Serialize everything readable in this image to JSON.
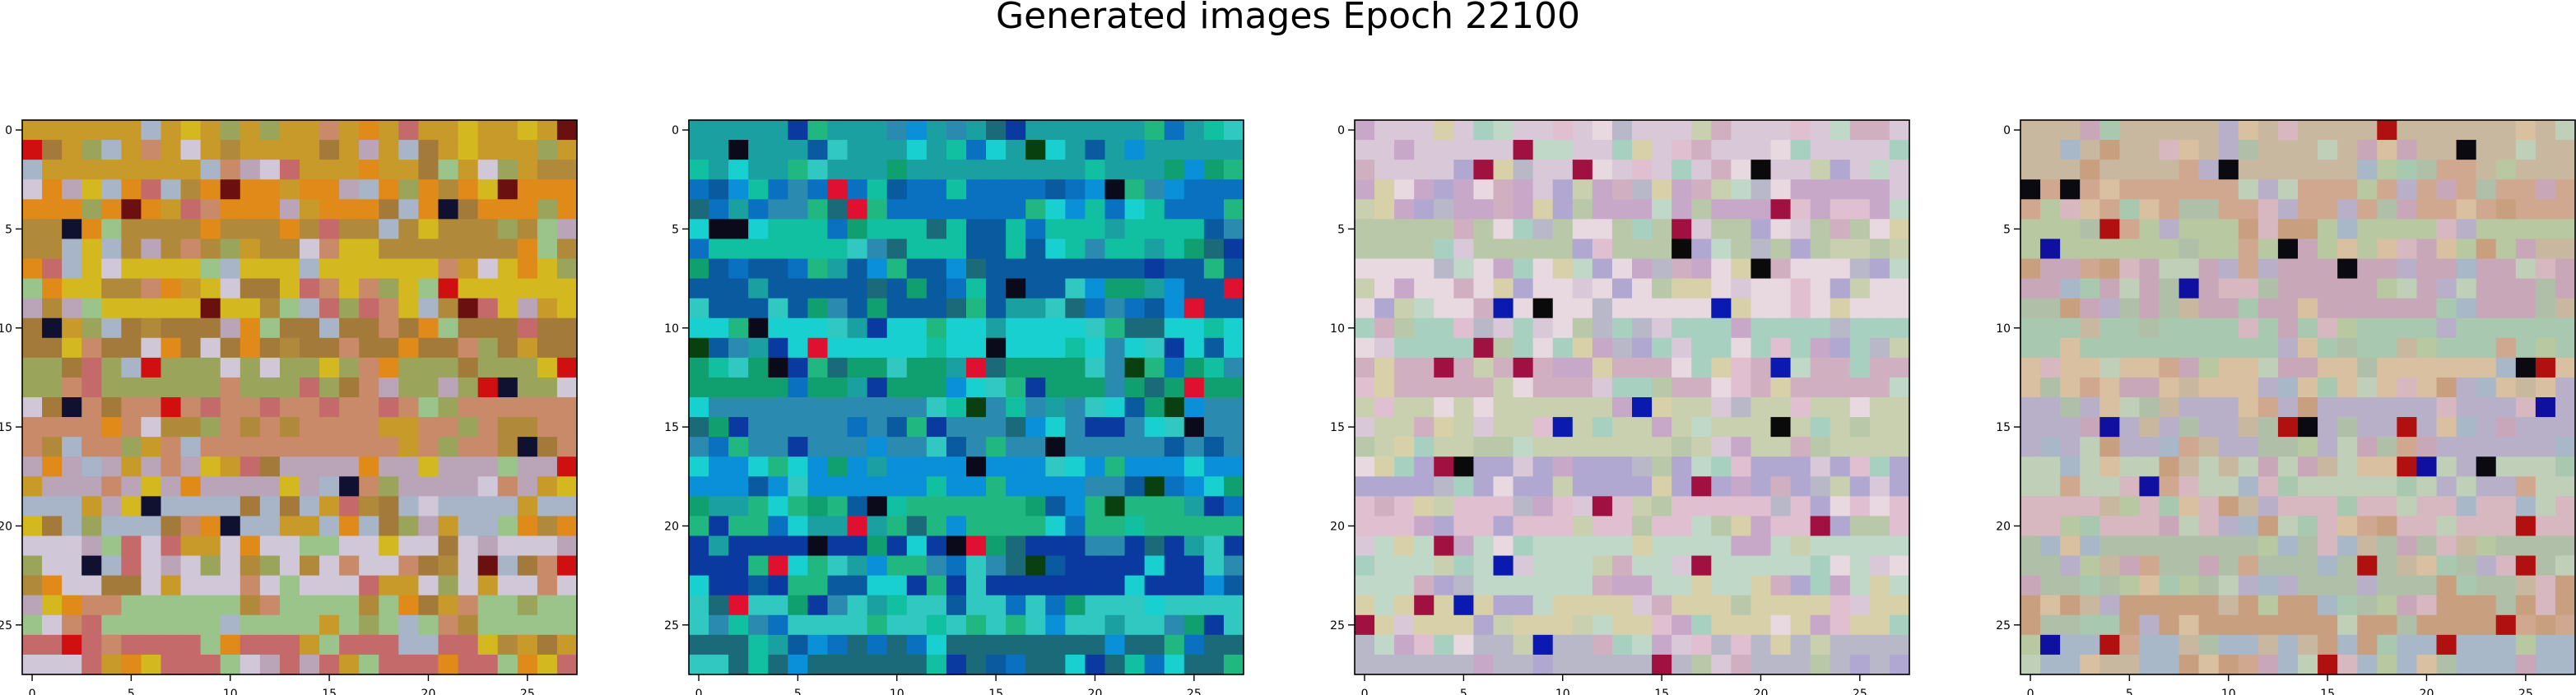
{
  "figure": {
    "title": "Generated images Epoch 22100"
  },
  "chart_data": [
    {
      "type": "heatmap",
      "title": "",
      "grid_size": [
        28,
        28
      ],
      "palette": [
        "#c79a2a",
        "#e08a1a",
        "#b08a3a",
        "#d4b820",
        "#a47a3a",
        "#9aa45a",
        "#c88a68",
        "#b9a4b8",
        "#a8b4c8",
        "#d0c8d8",
        "#9ac48a",
        "#c46a6a"
      ],
      "accent_colors": [
        "#101030",
        "#6a1010",
        "#d01010"
      ],
      "xticks": [
        0,
        5,
        10,
        15,
        20,
        25
      ],
      "yticks": [
        0,
        5,
        10,
        15,
        20,
        25
      ],
      "xlim": [
        -0.5,
        27.5
      ],
      "ylim": [
        27.5,
        -0.5
      ],
      "grid": false
    },
    {
      "type": "heatmap",
      "title": "",
      "grid_size": [
        28,
        28
      ],
      "palette": [
        "#1aa0a0",
        "#0a70c0",
        "#10c0a0",
        "#0a5aa0",
        "#18d0d0",
        "#10a070",
        "#2a8ab0",
        "#0a90d8",
        "#20b880",
        "#0a3aa0",
        "#30c8c0",
        "#1a6a7a"
      ],
      "accent_colors": [
        "#0a0a1a",
        "#0a4010",
        "#e01030"
      ],
      "xticks": [
        0,
        5,
        10,
        15,
        20,
        25
      ],
      "yticks": [
        0,
        5,
        10,
        15,
        20,
        25
      ],
      "xlim": [
        -0.5,
        27.5
      ],
      "ylim": [
        27.5,
        -0.5
      ],
      "grid": false
    },
    {
      "type": "heatmap",
      "title": "",
      "grid_size": [
        28,
        28
      ],
      "palette": [
        "#d8c8d8",
        "#c8a8c8",
        "#b8c8a8",
        "#e8d8e0",
        "#a8d0c0",
        "#d0b0c0",
        "#c8d0b0",
        "#b0a8d0",
        "#e0c0d0",
        "#c0d8c8",
        "#d8d0a8",
        "#b8b8c8"
      ],
      "accent_colors": [
        "#0a0a0a",
        "#0a1ab0",
        "#a01040"
      ],
      "xticks": [
        0,
        5,
        10,
        15,
        20,
        25
      ],
      "yticks": [
        0,
        5,
        10,
        15,
        20,
        25
      ],
      "xlim": [
        -0.5,
        27.5
      ],
      "ylim": [
        27.5,
        -0.5
      ],
      "grid": false
    },
    {
      "type": "heatmap",
      "title": "",
      "grid_size": [
        28,
        28
      ],
      "palette": [
        "#c8b8a0",
        "#d0a890",
        "#b8c8a0",
        "#c8a8b8",
        "#a8c8b0",
        "#d8c0a0",
        "#b8b0c8",
        "#c0d0b8",
        "#d8b8c0",
        "#b0c0a8",
        "#c8a080",
        "#a8b8c8"
      ],
      "accent_colors": [
        "#0a0a10",
        "#1010a0",
        "#b01010"
      ],
      "xticks": [
        0,
        5,
        10,
        15,
        20,
        25
      ],
      "yticks": [
        0,
        5,
        10,
        15,
        20,
        25
      ],
      "xlim": [
        -0.5,
        27.5
      ],
      "ylim": [
        27.5,
        -0.5
      ],
      "grid": false
    }
  ]
}
